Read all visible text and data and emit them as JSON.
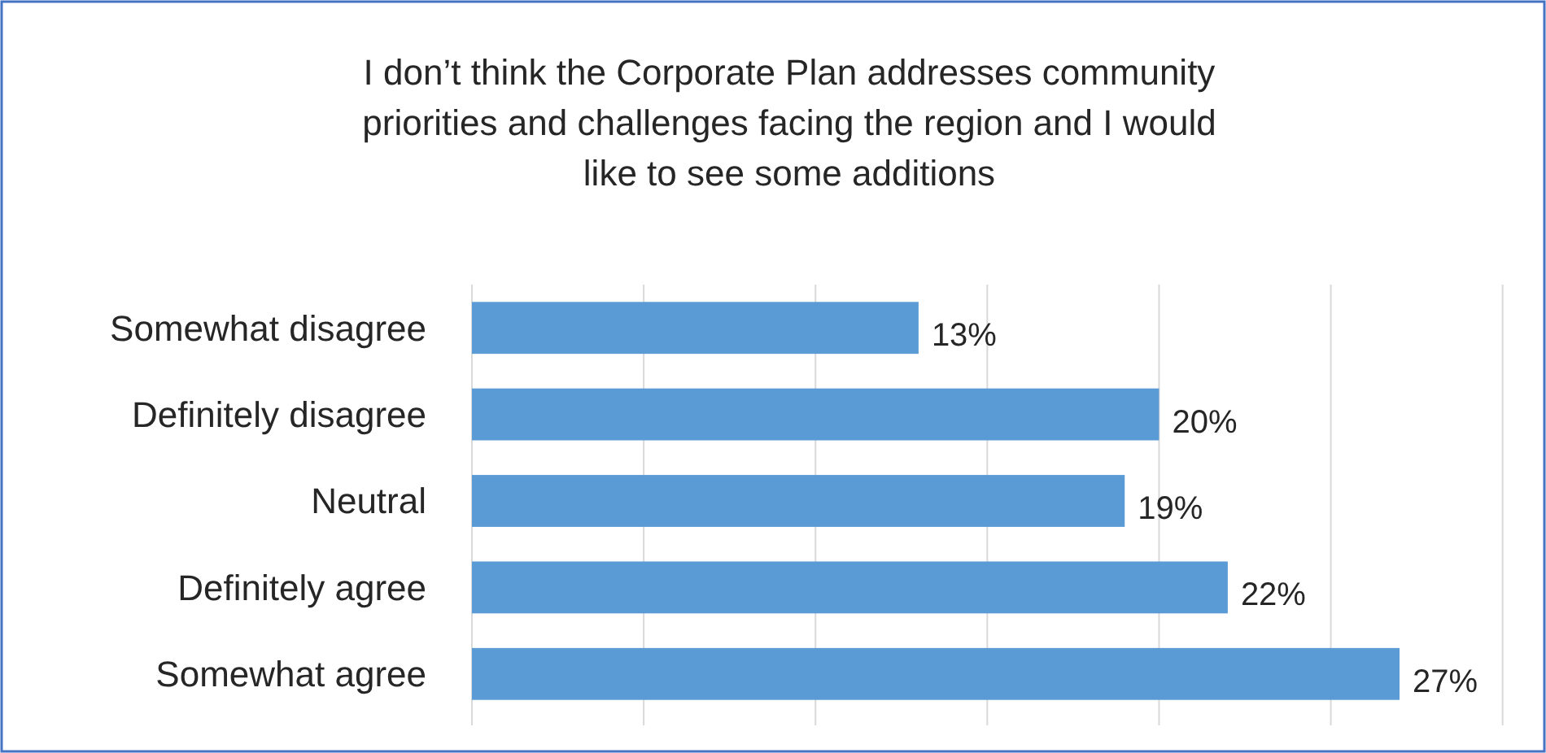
{
  "chart_data": {
    "type": "bar",
    "orientation": "horizontal",
    "title": "I don’t think the Corporate Plan addresses community priorities and challenges facing the region and I would like to see some additions",
    "categories": [
      "Somewhat disagree",
      "Definitely disagree",
      "Neutral",
      "Definitely agree",
      "Somewhat agree"
    ],
    "values": [
      13,
      20,
      19,
      22,
      27
    ],
    "value_labels": [
      "13%",
      "20%",
      "19%",
      "22%",
      "27%"
    ],
    "color": "#5b9bd5",
    "grid": "x",
    "tick_labels": "y"
  }
}
